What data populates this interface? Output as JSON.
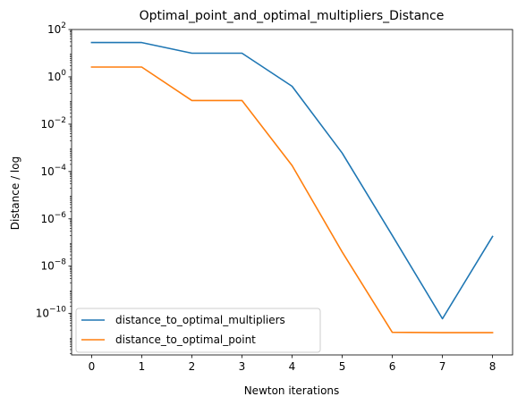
{
  "chart_data": {
    "type": "line",
    "title": "Optimal_point_and_optimal_multipliers_Distance",
    "xlabel": "Newton iterations",
    "ylabel": "Distance / log",
    "yscale": "log",
    "xlim": [
      -0.4,
      8.4
    ],
    "ylim_exp": [
      -11.75,
      2.0
    ],
    "xticks": [
      "0",
      "1",
      "2",
      "3",
      "4",
      "5",
      "6",
      "7",
      "8"
    ],
    "yticks": [
      {
        "exp": 2,
        "base": "10",
        "sup": "2"
      },
      {
        "exp": 0,
        "base": "10",
        "sup": "0"
      },
      {
        "exp": -2,
        "base": "10",
        "sup": "−2"
      },
      {
        "exp": -4,
        "base": "10",
        "sup": "−4"
      },
      {
        "exp": -6,
        "base": "10",
        "sup": "−6"
      },
      {
        "exp": -8,
        "base": "10",
        "sup": "−8"
      },
      {
        "exp": -10,
        "base": "10",
        "sup": "−10"
      }
    ],
    "x": [
      0,
      1,
      2,
      3,
      4,
      5,
      6,
      7,
      8
    ],
    "series": [
      {
        "name": "distance_to_optimal_multipliers",
        "color": "#1f77b4",
        "values": [
          28,
          28,
          10,
          10,
          0.4,
          0.0006,
          2e-07,
          6e-11,
          1.8e-07
        ]
      },
      {
        "name": "distance_to_optimal_point",
        "color": "#ff7f0e",
        "values": [
          2.6,
          2.6,
          0.1,
          0.1,
          0.00018,
          4e-08,
          1.6e-11,
          1.55e-11,
          1.55e-11
        ]
      }
    ],
    "legend_position": "lower-left",
    "grid": false
  }
}
